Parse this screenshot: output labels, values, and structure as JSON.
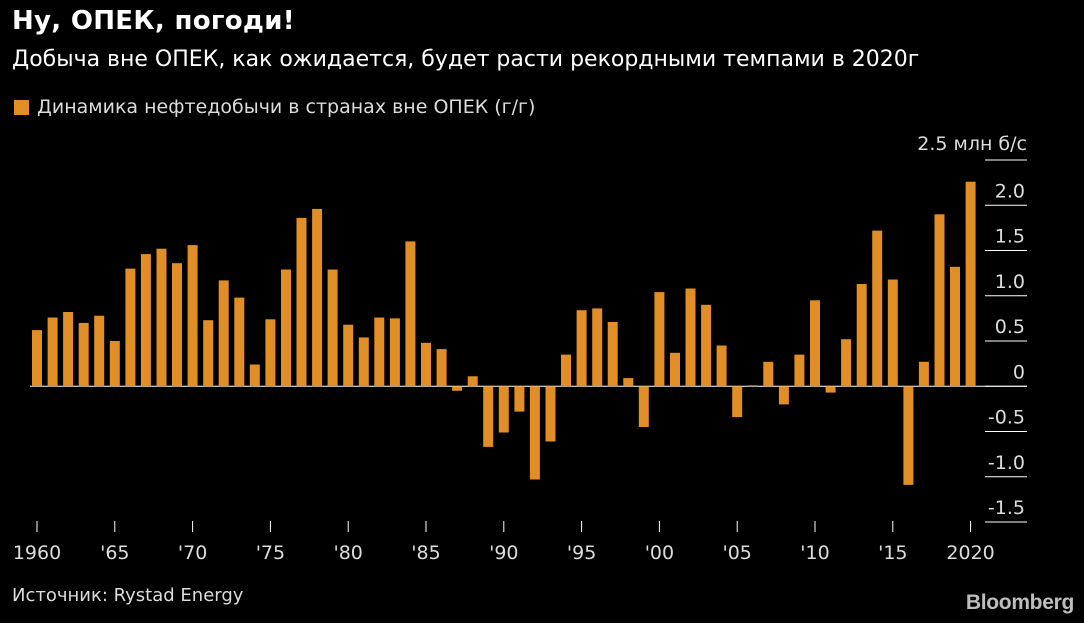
{
  "header": {
    "title": "Ну, ОПЕК, погоди!",
    "subtitle": "Добыча вне ОПЕК, как ожидается, будет расти рекордными темпами в 2020г"
  },
  "legend": {
    "label": "Динамика нефтедобычи в странах вне ОПЕК (г/г)"
  },
  "footer": {
    "source": "Источник: Rystad Energy",
    "logo": "Bloomberg"
  },
  "colors": {
    "bar": "#E08E25",
    "background": "#000000",
    "grid": "#ffffff",
    "text": "#dcdcdc"
  },
  "chart_data": {
    "type": "bar",
    "title": "Ну, ОПЕК, погоди!",
    "subtitle": "Добыча вне ОПЕК, как ожидается, будет расти рекордными темпами в 2020г",
    "unit_label": "2.5 млн б/с",
    "ylim": [
      -1.5,
      2.5
    ],
    "y_ticks": [
      {
        "value": 2.5,
        "label": "2.5 млн б/с"
      },
      {
        "value": 2.0,
        "label": "2.0"
      },
      {
        "value": 1.5,
        "label": "1.5"
      },
      {
        "value": 1.0,
        "label": "1.0"
      },
      {
        "value": 0.5,
        "label": "0.5"
      },
      {
        "value": 0,
        "label": "0"
      },
      {
        "value": -0.5,
        "label": "-0.5"
      },
      {
        "value": -1.0,
        "label": "-1.0"
      },
      {
        "value": -1.5,
        "label": "-1.5"
      }
    ],
    "x_ticks": [
      {
        "year": 1960,
        "label": "1960"
      },
      {
        "year": 1965,
        "label": "'65"
      },
      {
        "year": 1970,
        "label": "'70"
      },
      {
        "year": 1975,
        "label": "'75"
      },
      {
        "year": 1980,
        "label": "'80"
      },
      {
        "year": 1985,
        "label": "'85"
      },
      {
        "year": 1990,
        "label": "'90"
      },
      {
        "year": 1995,
        "label": "'95"
      },
      {
        "year": 2000,
        "label": "'00"
      },
      {
        "year": 2005,
        "label": "'05"
      },
      {
        "year": 2010,
        "label": "'10"
      },
      {
        "year": 2015,
        "label": "'15"
      },
      {
        "year": 2020,
        "label": "2020"
      }
    ],
    "grid": true,
    "legend_position": "top-left",
    "series": [
      {
        "name": "Динамика нефтедобычи в странах вне ОПЕК (г/г)",
        "x": [
          1960,
          1961,
          1962,
          1963,
          1964,
          1965,
          1966,
          1967,
          1968,
          1969,
          1970,
          1971,
          1972,
          1973,
          1974,
          1975,
          1976,
          1977,
          1978,
          1979,
          1980,
          1981,
          1982,
          1983,
          1984,
          1985,
          1986,
          1987,
          1988,
          1989,
          1990,
          1991,
          1992,
          1993,
          1994,
          1995,
          1996,
          1997,
          1998,
          1999,
          2000,
          2001,
          2002,
          2003,
          2004,
          2005,
          2006,
          2007,
          2008,
          2009,
          2010,
          2011,
          2012,
          2013,
          2014,
          2015,
          2016,
          2017,
          2018,
          2019,
          2020
        ],
        "values": [
          0.62,
          0.76,
          0.82,
          0.7,
          0.78,
          0.5,
          1.3,
          1.46,
          1.52,
          1.36,
          1.56,
          0.73,
          1.17,
          0.98,
          0.24,
          0.74,
          1.29,
          1.86,
          1.96,
          1.29,
          0.68,
          0.54,
          0.76,
          0.75,
          1.6,
          0.48,
          0.41,
          -0.05,
          0.11,
          -0.67,
          -0.51,
          -0.28,
          -1.03,
          -0.61,
          0.35,
          0.84,
          0.86,
          0.71,
          0.09,
          -0.45,
          1.04,
          0.37,
          1.08,
          0.9,
          0.45,
          -0.34,
          0.01,
          0.27,
          -0.2,
          0.35,
          0.95,
          -0.07,
          0.52,
          1.13,
          1.72,
          1.18,
          -1.09,
          0.27,
          1.9,
          1.32,
          2.26
        ]
      }
    ]
  }
}
